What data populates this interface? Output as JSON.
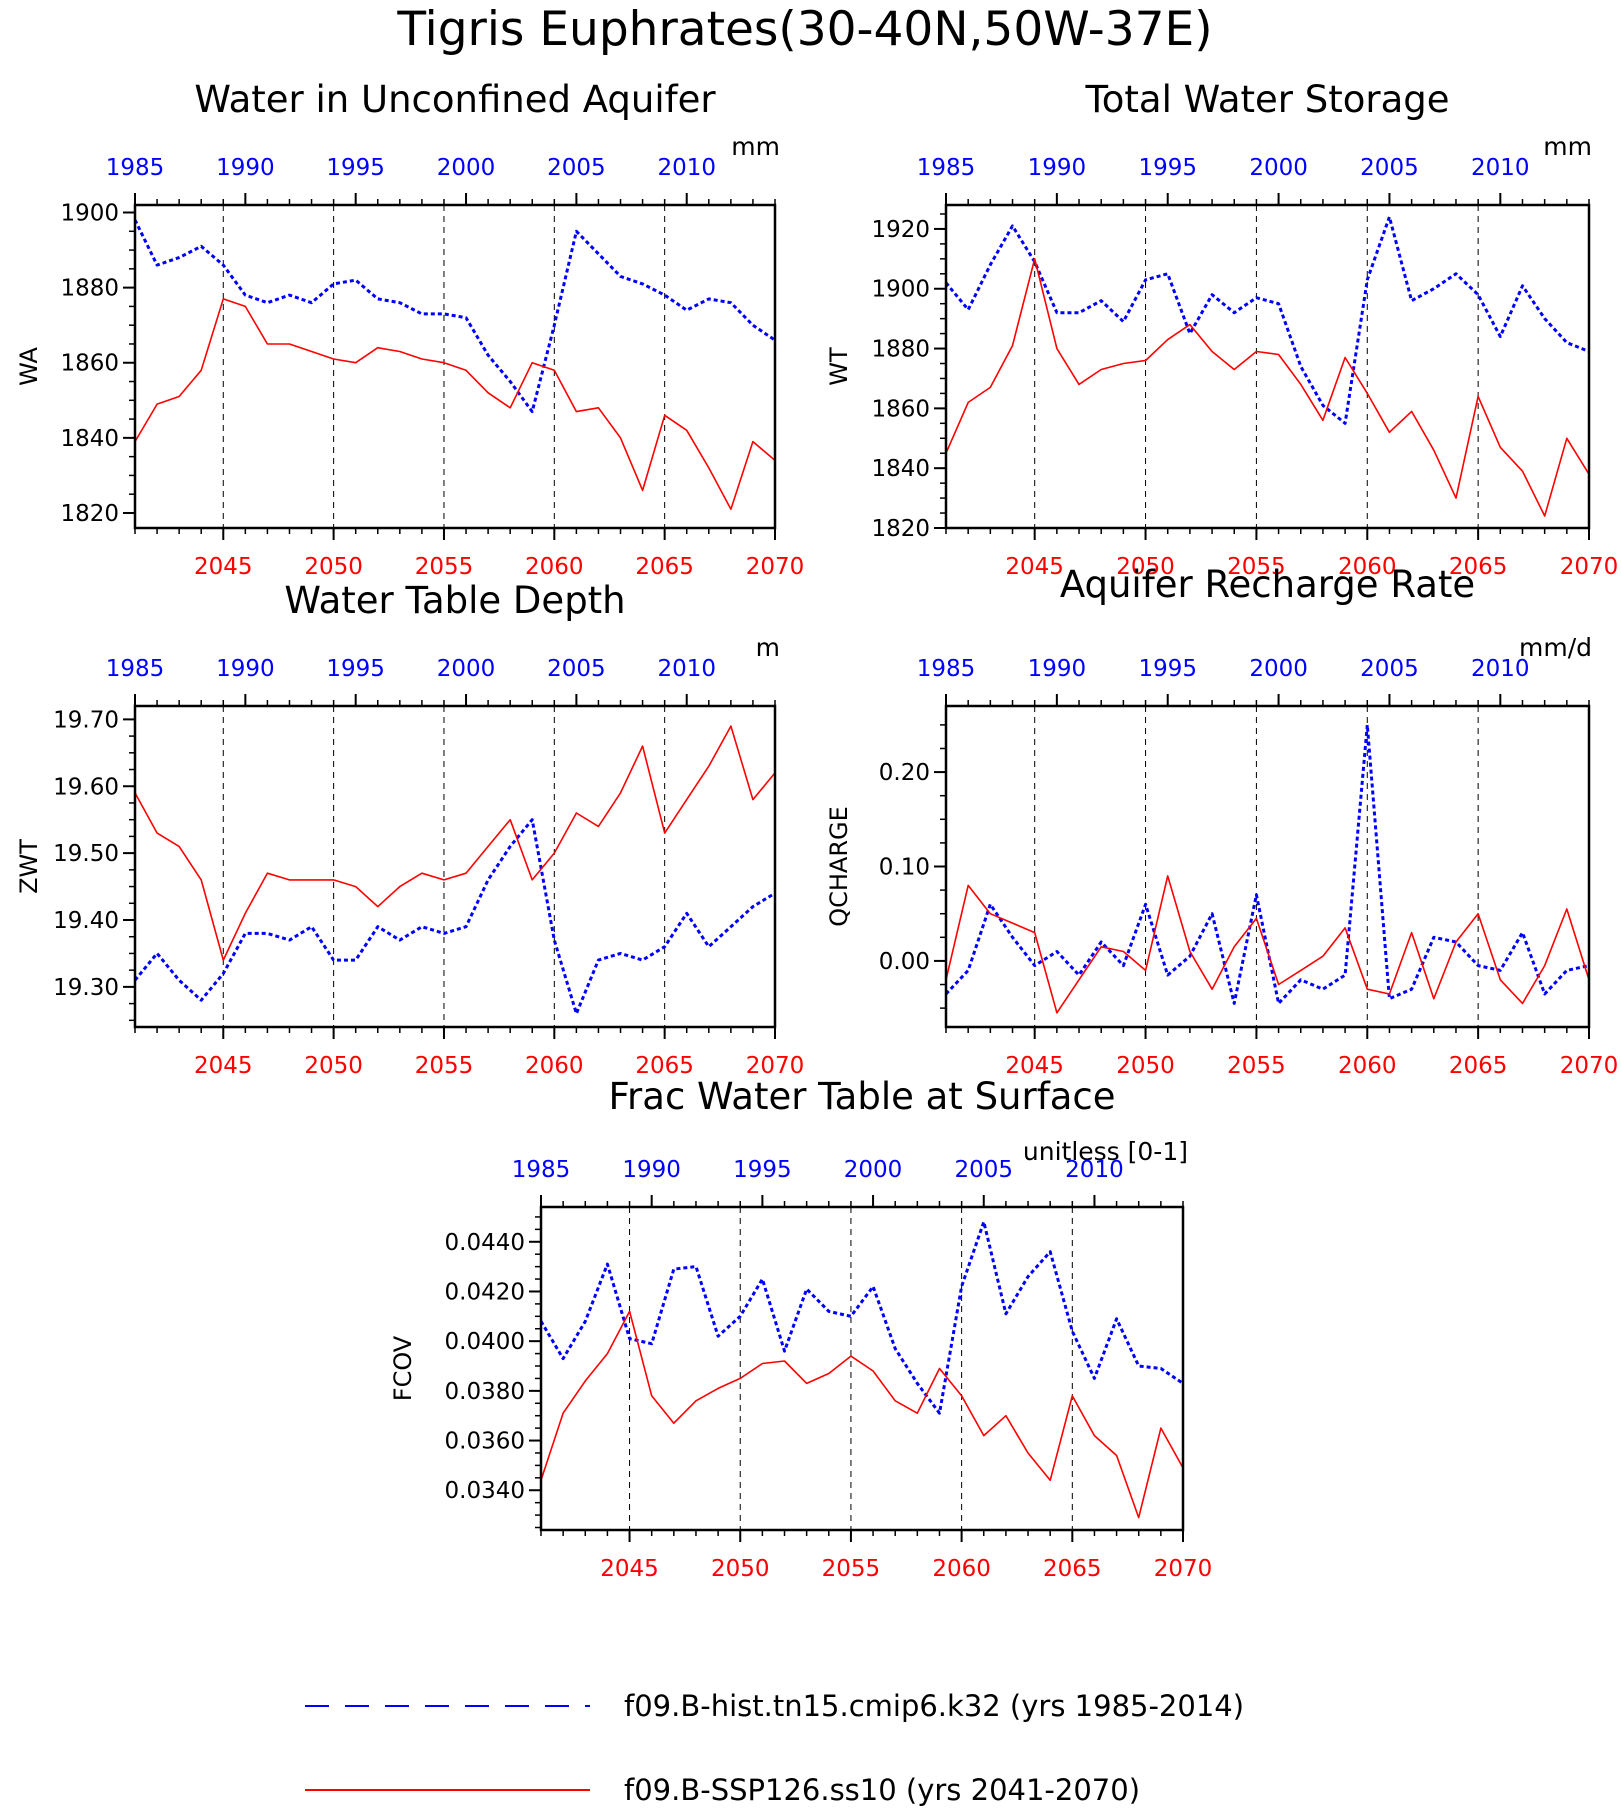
{
  "title": "Tigris Euphrates(30-40N,50W-37E)",
  "legend": [
    {
      "label": "f09.B-hist.tn15.cmip6.k32 (yrs 1985-2014)",
      "color": "#0000ff",
      "style": "dashed"
    },
    {
      "label": "f09.B-SSP126.ss10 (yrs 2041-2070)",
      "color": "#ff0000",
      "style": "solid"
    }
  ],
  "chart_data": [
    {
      "type": "line",
      "title": "Water in Unconfined Aquifer",
      "ylabel": "WA",
      "units": "mm",
      "ylim": [
        1816,
        1902
      ],
      "yticks": [
        1820,
        1840,
        1860,
        1880,
        1900
      ],
      "ytick_labels": [
        "1820",
        "1840",
        "1860",
        "1880",
        "1900"
      ],
      "bottom_xaxis": {
        "range": [
          2041,
          2070
        ],
        "ticks": [
          2045,
          2050,
          2055,
          2060,
          2065,
          2070
        ],
        "color": "#ff0000"
      },
      "top_xaxis": {
        "range": [
          1985,
          2014
        ],
        "ticks": [
          1985,
          1990,
          1995,
          2000,
          2005,
          2010
        ],
        "color": "#0000ff"
      },
      "vlines": [
        2045,
        2050,
        2055,
        2060,
        2065
      ],
      "series": [
        {
          "name": "f09.B-hist.tn15.cmip6.k32 (yrs 1985-2014)",
          "axis": "top",
          "color": "#0000ff",
          "dash": true,
          "x": [
            1985,
            1986,
            1987,
            1988,
            1989,
            1990,
            1991,
            1992,
            1993,
            1994,
            1995,
            1996,
            1997,
            1998,
            1999,
            2000,
            2001,
            2002,
            2003,
            2004,
            2005,
            2006,
            2007,
            2008,
            2009,
            2010,
            2011,
            2012,
            2013,
            2014
          ],
          "y": [
            1898,
            1886,
            1888,
            1891,
            1886,
            1878,
            1876,
            1878,
            1876,
            1881,
            1882,
            1877,
            1876,
            1873,
            1873,
            1872,
            1862,
            1855,
            1847,
            1870,
            1895,
            1889,
            1883,
            1881,
            1878,
            1874,
            1877,
            1876,
            1870,
            1866
          ]
        },
        {
          "name": "f09.B-SSP126.ss10 (yrs 2041-2070)",
          "axis": "bottom",
          "color": "#ff0000",
          "dash": false,
          "x": [
            2041,
            2042,
            2043,
            2044,
            2045,
            2046,
            2047,
            2048,
            2049,
            2050,
            2051,
            2052,
            2053,
            2054,
            2055,
            2056,
            2057,
            2058,
            2059,
            2060,
            2061,
            2062,
            2063,
            2064,
            2065,
            2066,
            2067,
            2068,
            2069,
            2070
          ],
          "y": [
            1839,
            1849,
            1851,
            1858,
            1877,
            1875,
            1865,
            1865,
            1863,
            1861,
            1860,
            1864,
            1863,
            1861,
            1860,
            1858,
            1852,
            1848,
            1860,
            1858,
            1847,
            1848,
            1840,
            1826,
            1846,
            1842,
            1832,
            1821,
            1839,
            1834
          ]
        }
      ]
    },
    {
      "type": "line",
      "title": "Total Water Storage",
      "ylabel": "WT",
      "units": "mm",
      "ylim": [
        1820,
        1928
      ],
      "yticks": [
        1820,
        1840,
        1860,
        1880,
        1900,
        1920
      ],
      "ytick_labels": [
        "1820",
        "1840",
        "1860",
        "1880",
        "1900",
        "1920"
      ],
      "bottom_xaxis": {
        "range": [
          2041,
          2070
        ],
        "ticks": [
          2045,
          2050,
          2055,
          2060,
          2065,
          2070
        ],
        "color": "#ff0000"
      },
      "top_xaxis": {
        "range": [
          1985,
          2014
        ],
        "ticks": [
          1985,
          1990,
          1995,
          2000,
          2005,
          2010
        ],
        "color": "#0000ff"
      },
      "vlines": [
        2045,
        2050,
        2055,
        2060,
        2065
      ],
      "series": [
        {
          "name": "f09.B-hist.tn15.cmip6.k32 (yrs 1985-2014)",
          "axis": "top",
          "color": "#0000ff",
          "dash": true,
          "x": [
            1985,
            1986,
            1987,
            1988,
            1989,
            1990,
            1991,
            1992,
            1993,
            1994,
            1995,
            1996,
            1997,
            1998,
            1999,
            2000,
            2001,
            2002,
            2003,
            2004,
            2005,
            2006,
            2007,
            2008,
            2009,
            2010,
            2011,
            2012,
            2013,
            2014
          ],
          "y": [
            1902,
            1893,
            1908,
            1921,
            1909,
            1892,
            1892,
            1896,
            1889,
            1903,
            1905,
            1885,
            1898,
            1892,
            1897,
            1895,
            1874,
            1861,
            1855,
            1903,
            1924,
            1896,
            1900,
            1905,
            1898,
            1884,
            1901,
            1890,
            1882,
            1879
          ]
        },
        {
          "name": "f09.B-SSP126.ss10 (yrs 2041-2070)",
          "axis": "bottom",
          "color": "#ff0000",
          "dash": false,
          "x": [
            2041,
            2042,
            2043,
            2044,
            2045,
            2046,
            2047,
            2048,
            2049,
            2050,
            2051,
            2052,
            2053,
            2054,
            2055,
            2056,
            2057,
            2058,
            2059,
            2060,
            2061,
            2062,
            2063,
            2064,
            2065,
            2066,
            2067,
            2068,
            2069,
            2070
          ],
          "y": [
            1845,
            1862,
            1867,
            1881,
            1910,
            1880,
            1868,
            1873,
            1875,
            1876,
            1883,
            1888,
            1879,
            1873,
            1879,
            1878,
            1868,
            1856,
            1877,
            1865,
            1852,
            1859,
            1846,
            1830,
            1864,
            1847,
            1839,
            1824,
            1850,
            1838
          ]
        }
      ]
    },
    {
      "type": "line",
      "title": "Water Table Depth",
      "ylabel": "ZWT",
      "units": "m",
      "ylim": [
        19.24,
        19.72
      ],
      "yticks": [
        19.3,
        19.4,
        19.5,
        19.6,
        19.7
      ],
      "ytick_labels": [
        "19.30",
        "19.40",
        "19.50",
        "19.60",
        "19.70"
      ],
      "bottom_xaxis": {
        "range": [
          2041,
          2070
        ],
        "ticks": [
          2045,
          2050,
          2055,
          2060,
          2065,
          2070
        ],
        "color": "#ff0000"
      },
      "top_xaxis": {
        "range": [
          1985,
          2014
        ],
        "ticks": [
          1985,
          1990,
          1995,
          2000,
          2005,
          2010
        ],
        "color": "#0000ff"
      },
      "vlines": [
        2045,
        2050,
        2055,
        2060,
        2065
      ],
      "series": [
        {
          "name": "f09.B-hist.tn15.cmip6.k32 (yrs 1985-2014)",
          "axis": "top",
          "color": "#0000ff",
          "dash": true,
          "x": [
            1985,
            1986,
            1987,
            1988,
            1989,
            1990,
            1991,
            1992,
            1993,
            1994,
            1995,
            1996,
            1997,
            1998,
            1999,
            2000,
            2001,
            2002,
            2003,
            2004,
            2005,
            2006,
            2007,
            2008,
            2009,
            2010,
            2011,
            2012,
            2013,
            2014
          ],
          "y": [
            19.31,
            19.35,
            19.31,
            19.28,
            19.32,
            19.38,
            19.38,
            19.37,
            19.39,
            19.34,
            19.34,
            19.39,
            19.37,
            19.39,
            19.38,
            19.39,
            19.46,
            19.51,
            19.55,
            19.37,
            19.26,
            19.34,
            19.35,
            19.34,
            19.36,
            19.41,
            19.36,
            19.39,
            19.42,
            19.44
          ]
        },
        {
          "name": "f09.B-SSP126.ss10 (yrs 2041-2070)",
          "axis": "bottom",
          "color": "#ff0000",
          "dash": false,
          "x": [
            2041,
            2042,
            2043,
            2044,
            2045,
            2046,
            2047,
            2048,
            2049,
            2050,
            2051,
            2052,
            2053,
            2054,
            2055,
            2056,
            2057,
            2058,
            2059,
            2060,
            2061,
            2062,
            2063,
            2064,
            2065,
            2066,
            2067,
            2068,
            2069,
            2070
          ],
          "y": [
            19.59,
            19.53,
            19.51,
            19.46,
            19.34,
            19.41,
            19.47,
            19.46,
            19.46,
            19.46,
            19.45,
            19.42,
            19.45,
            19.47,
            19.46,
            19.47,
            19.51,
            19.55,
            19.46,
            19.5,
            19.56,
            19.54,
            19.59,
            19.66,
            19.53,
            19.58,
            19.63,
            19.69,
            19.58,
            19.62
          ]
        }
      ]
    },
    {
      "type": "line",
      "title": "Aquifer Recharge Rate",
      "ylabel": "QCHARGE",
      "units": "mm/d",
      "ylim": [
        -0.07,
        0.27
      ],
      "yticks": [
        0.0,
        0.1,
        0.2
      ],
      "ytick_labels": [
        "0.00",
        "0.10",
        "0.20"
      ],
      "bottom_xaxis": {
        "range": [
          2041,
          2070
        ],
        "ticks": [
          2045,
          2050,
          2055,
          2060,
          2065,
          2070
        ],
        "color": "#ff0000"
      },
      "top_xaxis": {
        "range": [
          1985,
          2014
        ],
        "ticks": [
          1985,
          1990,
          1995,
          2000,
          2005,
          2010
        ],
        "color": "#0000ff"
      },
      "vlines": [
        2045,
        2050,
        2055,
        2060,
        2065
      ],
      "series": [
        {
          "name": "f09.B-hist.tn15.cmip6.k32 (yrs 1985-2014)",
          "axis": "top",
          "color": "#0000ff",
          "dash": true,
          "x": [
            1985,
            1986,
            1987,
            1988,
            1989,
            1990,
            1991,
            1992,
            1993,
            1994,
            1995,
            1996,
            1997,
            1998,
            1999,
            2000,
            2001,
            2002,
            2003,
            2004,
            2005,
            2006,
            2007,
            2008,
            2009,
            2010,
            2011,
            2012,
            2013,
            2014
          ],
          "y": [
            -0.035,
            -0.01,
            0.06,
            0.025,
            -0.005,
            0.01,
            -0.015,
            0.02,
            -0.005,
            0.06,
            -0.015,
            0.005,
            0.05,
            -0.045,
            0.07,
            -0.045,
            -0.02,
            -0.03,
            -0.015,
            0.25,
            -0.04,
            -0.03,
            0.025,
            0.02,
            -0.005,
            -0.01,
            0.03,
            -0.035,
            -0.01,
            -0.005
          ]
        },
        {
          "name": "f09.B-SSP126.ss10 (yrs 2041-2070)",
          "axis": "bottom",
          "color": "#ff0000",
          "dash": false,
          "x": [
            2041,
            2042,
            2043,
            2044,
            2045,
            2046,
            2047,
            2048,
            2049,
            2050,
            2051,
            2052,
            2053,
            2054,
            2055,
            2056,
            2057,
            2058,
            2059,
            2060,
            2061,
            2062,
            2063,
            2064,
            2065,
            2066,
            2067,
            2068,
            2069,
            2070
          ],
          "y": [
            -0.02,
            0.08,
            0.05,
            0.04,
            0.03,
            -0.055,
            -0.02,
            0.015,
            0.01,
            -0.01,
            0.09,
            0.01,
            -0.03,
            0.015,
            0.045,
            -0.025,
            -0.01,
            0.005,
            0.035,
            -0.03,
            -0.035,
            0.03,
            -0.04,
            0.02,
            0.05,
            -0.02,
            -0.045,
            -0.005,
            0.055,
            -0.02
          ]
        }
      ]
    },
    {
      "type": "line",
      "title": "Frac Water Table at Surface",
      "ylabel": "FCOV",
      "units": "unitless [0-1]",
      "ylim": [
        0.0324,
        0.0454
      ],
      "yticks": [
        0.034,
        0.036,
        0.038,
        0.04,
        0.042,
        0.044
      ],
      "ytick_labels": [
        "0.0340",
        "0.0360",
        "0.0380",
        "0.0400",
        "0.0420",
        "0.0440"
      ],
      "bottom_xaxis": {
        "range": [
          2041,
          2070
        ],
        "ticks": [
          2045,
          2050,
          2055,
          2060,
          2065,
          2070
        ],
        "color": "#ff0000"
      },
      "top_xaxis": {
        "range": [
          1985,
          2014
        ],
        "ticks": [
          1985,
          1990,
          1995,
          2000,
          2005,
          2010
        ],
        "color": "#0000ff"
      },
      "vlines": [
        2045,
        2050,
        2055,
        2060,
        2065
      ],
      "series": [
        {
          "name": "f09.B-hist.tn15.cmip6.k32 (yrs 1985-2014)",
          "axis": "top",
          "color": "#0000ff",
          "dash": true,
          "x": [
            1985,
            1986,
            1987,
            1988,
            1989,
            1990,
            1991,
            1992,
            1993,
            1994,
            1995,
            1996,
            1997,
            1998,
            1999,
            2000,
            2001,
            2002,
            2003,
            2004,
            2005,
            2006,
            2007,
            2008,
            2009,
            2010,
            2011,
            2012,
            2013,
            2014
          ],
          "y": [
            0.0408,
            0.0393,
            0.0408,
            0.0431,
            0.0401,
            0.0399,
            0.0429,
            0.043,
            0.0402,
            0.041,
            0.0425,
            0.0396,
            0.0421,
            0.0412,
            0.041,
            0.0422,
            0.0397,
            0.0383,
            0.0371,
            0.0422,
            0.0448,
            0.0411,
            0.0426,
            0.0436,
            0.0404,
            0.0385,
            0.0409,
            0.039,
            0.0389,
            0.0383
          ]
        },
        {
          "name": "f09.B-SSP126.ss10 (yrs 2041-2070)",
          "axis": "bottom",
          "color": "#ff0000",
          "dash": false,
          "x": [
            2041,
            2042,
            2043,
            2044,
            2045,
            2046,
            2047,
            2048,
            2049,
            2050,
            2051,
            2052,
            2053,
            2054,
            2055,
            2056,
            2057,
            2058,
            2059,
            2060,
            2061,
            2062,
            2063,
            2064,
            2065,
            2066,
            2067,
            2068,
            2069,
            2070
          ],
          "y": [
            0.0344,
            0.0371,
            0.0384,
            0.0395,
            0.0412,
            0.0378,
            0.0367,
            0.0376,
            0.0381,
            0.0385,
            0.0391,
            0.0392,
            0.0383,
            0.0387,
            0.0394,
            0.0388,
            0.0376,
            0.0371,
            0.0389,
            0.0378,
            0.0362,
            0.037,
            0.0355,
            0.0344,
            0.0378,
            0.0362,
            0.0354,
            0.0329,
            0.0365,
            0.0349
          ]
        }
      ]
    }
  ]
}
